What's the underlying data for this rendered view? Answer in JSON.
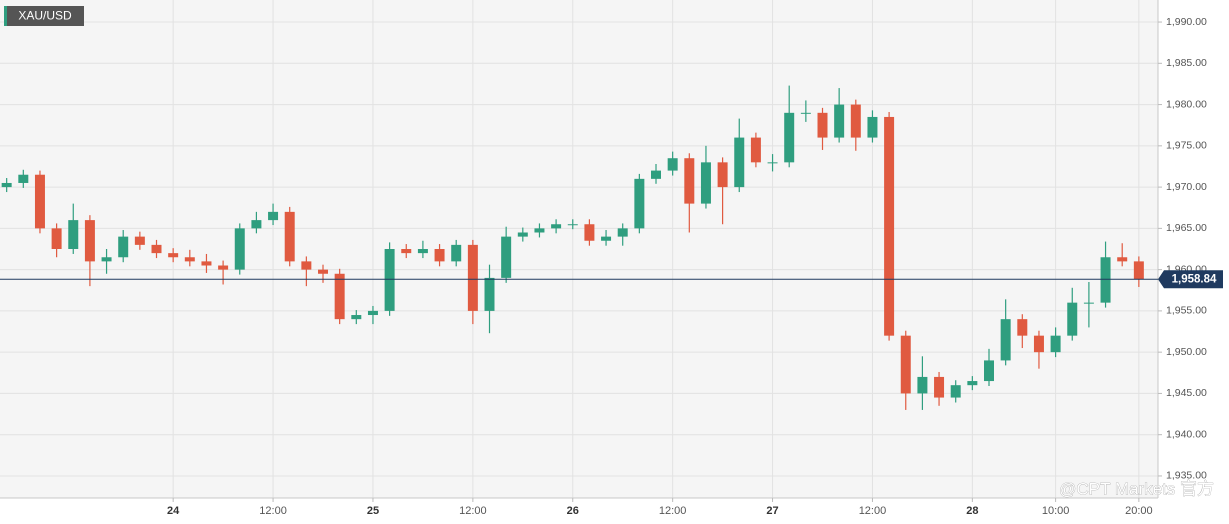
{
  "chart_data": {
    "type": "candlestick",
    "symbol": "XAU/USD",
    "watermark": "@CPT Markets 官方",
    "up_color": "#2f9e7f",
    "down_color": "#e05a40",
    "grid": true,
    "x": [
      -20,
      -18,
      -16,
      -14,
      -12,
      -10,
      -8,
      -6,
      -4,
      -2,
      0,
      2,
      4,
      6,
      8,
      10,
      12,
      14,
      16,
      18,
      20,
      22,
      24,
      26,
      28,
      30,
      32,
      34,
      36,
      38,
      40,
      42,
      44,
      46,
      48,
      50,
      52,
      54,
      56,
      58,
      60,
      62,
      64,
      66,
      68,
      70,
      72,
      74,
      76,
      78,
      80,
      82,
      84,
      86,
      88,
      90,
      92,
      94,
      96,
      98,
      100,
      102,
      104,
      106,
      108,
      110,
      112,
      114,
      116
    ],
    "open": [
      1970,
      1970.5,
      1971.5,
      1965,
      1962.5,
      1966,
      1961,
      1961.5,
      1964,
      1963,
      1962,
      1961.5,
      1961,
      1960.5,
      1960,
      1965,
      1966,
      1967,
      1961,
      1960,
      1959.5,
      1954,
      1954.5,
      1955,
      1962.5,
      1962,
      1962.5,
      1961,
      1963,
      1955,
      1959,
      1964,
      1964.5,
      1965,
      1965.5,
      1965.5,
      1963.5,
      1964,
      1965,
      1971,
      1972,
      1973.5,
      1968,
      1973,
      1970,
      1976,
      1973,
      1973,
      1979,
      1979,
      1976,
      1980,
      1976,
      1978.5,
      1952,
      1945,
      1947,
      1944.5,
      1946,
      1946.5,
      1949,
      1954,
      1952,
      1950,
      1952,
      1956,
      1956,
      1961.5,
      1961
    ],
    "high": [
      1971.1,
      1972.1,
      1972,
      1965.6,
      1968,
      1966.6,
      1962.5,
      1964.8,
      1964.6,
      1963.6,
      1962.6,
      1962.4,
      1961.9,
      1961.1,
      1965.6,
      1967,
      1968,
      1967.6,
      1961.6,
      1960.6,
      1960.1,
      1955.1,
      1955.6,
      1963.3,
      1963.1,
      1963.5,
      1963.1,
      1963.6,
      1963.6,
      1960.6,
      1965.2,
      1965.1,
      1965.6,
      1966.1,
      1966.1,
      1966.1,
      1964.8,
      1965.6,
      1971.6,
      1972.8,
      1974.3,
      1974.1,
      1975,
      1973.6,
      1978.3,
      1976.6,
      1974,
      1982.3,
      1980.5,
      1979.6,
      1982,
      1980.6,
      1979.3,
      1979.1,
      1952.6,
      1949.5,
      1947.6,
      1946.6,
      1947.1,
      1950.4,
      1956.4,
      1954.6,
      1952.6,
      1953,
      1957.8,
      1958.5,
      1963.4,
      1963.2,
      1961.6
    ],
    "low": [
      1969.4,
      1969.9,
      1964.4,
      1961.5,
      1961.9,
      1958,
      1959.5,
      1960.9,
      1962.4,
      1961.4,
      1960.9,
      1960.4,
      1959.6,
      1958.2,
      1959.4,
      1964.4,
      1965.4,
      1960.4,
      1958,
      1958.4,
      1953.4,
      1953.4,
      1953.4,
      1954.4,
      1961.4,
      1961.4,
      1960.4,
      1960.4,
      1953.4,
      1952.3,
      1958.4,
      1963.4,
      1963.9,
      1964.4,
      1964.9,
      1962.9,
      1962.9,
      1962.9,
      1964.4,
      1970.4,
      1971.4,
      1964.5,
      1967.4,
      1965.5,
      1969.4,
      1972.4,
      1971.9,
      1972.4,
      1977.9,
      1974.5,
      1975.4,
      1974.4,
      1975.4,
      1951.4,
      1943,
      1943,
      1943.5,
      1943.9,
      1945.4,
      1945.9,
      1948.4,
      1950.5,
      1948,
      1949.4,
      1951.4,
      1953,
      1955.4,
      1960.4,
      1957.9
    ],
    "close": [
      1970.5,
      1971.5,
      1965,
      1962.5,
      1966,
      1961,
      1961.5,
      1964,
      1963,
      1962,
      1961.5,
      1961,
      1960.5,
      1960,
      1965,
      1966,
      1967,
      1961,
      1960,
      1959.5,
      1954,
      1954.5,
      1955,
      1962.5,
      1962,
      1962.5,
      1961,
      1963,
      1955,
      1959,
      1964,
      1964.5,
      1965,
      1965.5,
      1965.5,
      1963.5,
      1964,
      1965,
      1971,
      1972,
      1973.5,
      1968,
      1973,
      1970,
      1976,
      1973,
      1973,
      1979,
      1979,
      1976,
      1980,
      1976,
      1978.5,
      1952,
      1945,
      1947,
      1944.5,
      1946,
      1946.5,
      1949,
      1954,
      1952,
      1950,
      1952,
      1956,
      1956,
      1961.5,
      1961,
      1958.84
    ],
    "last_price": {
      "value": 1958.84,
      "label": "1,958.84"
    },
    "last_price_color": "#1f3a5f",
    "xlim": [
      -20.8,
      118.3
    ],
    "xticks": [
      {
        "value": 0,
        "label": "24"
      },
      {
        "value": 12,
        "label": "12:00"
      },
      {
        "value": 24,
        "label": "25"
      },
      {
        "value": 36,
        "label": "12:00"
      },
      {
        "value": 48,
        "label": "26"
      },
      {
        "value": 60,
        "label": "12:00"
      },
      {
        "value": 72,
        "label": "27"
      },
      {
        "value": 84,
        "label": "12:00"
      },
      {
        "value": 96,
        "label": "28"
      },
      {
        "value": 106,
        "label": "10:00"
      },
      {
        "value": 116,
        "label": "20:00"
      }
    ],
    "ylim": [
      1932.33,
      1992.67
    ],
    "yticks": [
      {
        "value": 1935,
        "label": "1,935.00"
      },
      {
        "value": 1940,
        "label": "1,940.00"
      },
      {
        "value": 1945,
        "label": "1,945.00"
      },
      {
        "value": 1950,
        "label": "1,950.00"
      },
      {
        "value": 1955,
        "label": "1,955.00"
      },
      {
        "value": 1960,
        "label": "1,960.00"
      },
      {
        "value": 1965,
        "label": "1,965.00"
      },
      {
        "value": 1970,
        "label": "1,970.00"
      },
      {
        "value": 1975,
        "label": "1,975.00"
      },
      {
        "value": 1980,
        "label": "1,980.00"
      },
      {
        "value": 1985,
        "label": "1,985.00"
      },
      {
        "value": 1990,
        "label": "1,990.00"
      }
    ]
  }
}
